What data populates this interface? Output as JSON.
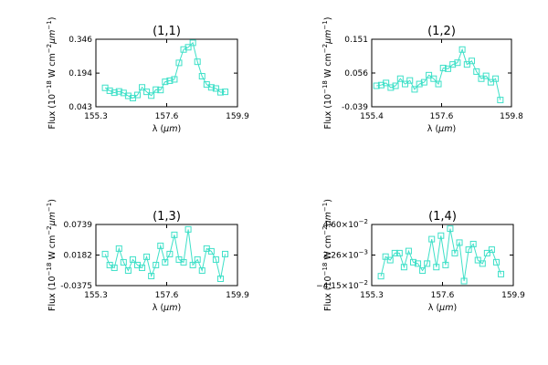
{
  "figure": {
    "ylabel_main": "Flux (10",
    "ylabel_exp1": "−18",
    "ylabel_mid": " W cm",
    "ylabel_exp2": "−2",
    "ylabel_end": "μm",
    "ylabel_exp3": "−1",
    "ylabel_close": ")",
    "xlabel_main": "λ (",
    "xlabel_unit": "μm",
    "xlabel_close": ")"
  },
  "chart_data": [
    {
      "type": "line",
      "title": "(1,1)",
      "xlabel": "λ (μm)",
      "ylabel": "Flux (10^-18 W cm^-2 μm^-1)",
      "xlim": [
        155.3,
        159.9
      ],
      "ylim": [
        0.043,
        0.346
      ],
      "xtick_values": [
        155.3,
        157.6,
        159.9
      ],
      "xtick_labels": [
        "155.3",
        "157.6",
        "159.9"
      ],
      "ytick_values": [
        0.043,
        0.194,
        0.346
      ],
      "ytick_labels": [
        "0.043",
        "0.194",
        "0.346"
      ],
      "marker": "square",
      "color": "#3ee0c8",
      "x": [
        155.6,
        155.75,
        155.9,
        156.05,
        156.2,
        156.35,
        156.5,
        156.65,
        156.8,
        156.95,
        157.1,
        157.25,
        157.4,
        157.55,
        157.7,
        157.85,
        158.0,
        158.15,
        158.3,
        158.45,
        158.6,
        158.75,
        158.9,
        159.05,
        159.2,
        159.35,
        159.5
      ],
      "y": [
        0.128,
        0.115,
        0.106,
        0.112,
        0.105,
        0.092,
        0.082,
        0.096,
        0.13,
        0.11,
        0.093,
        0.12,
        0.118,
        0.155,
        0.16,
        0.166,
        0.24,
        0.3,
        0.31,
        0.33,
        0.245,
        0.18,
        0.143,
        0.13,
        0.125,
        0.108,
        0.11
      ]
    },
    {
      "type": "line",
      "title": "(1,2)",
      "xlabel": "λ (μm)",
      "ylabel": "Flux (10^-18 W cm^-2 μm^-1)",
      "xlim": [
        155.4,
        159.8
      ],
      "ylim": [
        -0.039,
        0.151
      ],
      "xtick_values": [
        155.4,
        157.6,
        159.8
      ],
      "xtick_labels": [
        "155.4",
        "157.6",
        "159.8"
      ],
      "ytick_values": [
        -0.039,
        0.056,
        0.151
      ],
      "ytick_labels": [
        "-0.039",
        "0.056",
        "0.151"
      ],
      "marker": "square",
      "color": "#3ee0c8",
      "x": [
        155.55,
        155.7,
        155.85,
        156.0,
        156.15,
        156.3,
        156.45,
        156.6,
        156.75,
        156.9,
        157.05,
        157.2,
        157.35,
        157.5,
        157.65,
        157.8,
        157.95,
        158.1,
        158.25,
        158.4,
        158.55,
        158.7,
        158.85,
        159.0,
        159.15,
        159.3,
        159.45
      ],
      "y": [
        0.02,
        0.022,
        0.028,
        0.015,
        0.02,
        0.04,
        0.025,
        0.035,
        0.01,
        0.025,
        0.03,
        0.05,
        0.04,
        0.025,
        0.07,
        0.068,
        0.08,
        0.085,
        0.122,
        0.08,
        0.09,
        0.06,
        0.04,
        0.048,
        0.03,
        0.04,
        -0.02
      ]
    },
    {
      "type": "line",
      "title": "(1,3)",
      "xlabel": "λ (μm)",
      "ylabel": "Flux (10^-18 W cm^-2 μm^-1)",
      "xlim": [
        155.3,
        159.9
      ],
      "ylim": [
        -0.0375,
        0.0739
      ],
      "xtick_values": [
        155.3,
        157.6,
        159.9
      ],
      "xtick_labels": [
        "155.3",
        "157.6",
        "159.9"
      ],
      "ytick_values": [
        -0.0375,
        0.0182,
        0.0739
      ],
      "ytick_labels": [
        "-0.0375",
        "0.0182",
        "0.0739"
      ],
      "marker": "square",
      "color": "#3ee0c8",
      "x": [
        155.6,
        155.75,
        155.9,
        156.05,
        156.2,
        156.35,
        156.5,
        156.65,
        156.8,
        156.95,
        157.1,
        157.25,
        157.4,
        157.55,
        157.7,
        157.85,
        158.0,
        158.15,
        158.3,
        158.45,
        158.6,
        158.75,
        158.9,
        159.05,
        159.2,
        159.35,
        159.5
      ],
      "y": [
        0.02,
        0.0,
        -0.005,
        0.03,
        0.005,
        -0.01,
        0.01,
        0.0,
        -0.005,
        0.015,
        -0.02,
        0.0,
        0.035,
        0.005,
        0.02,
        0.055,
        0.01,
        0.005,
        0.065,
        0.0,
        0.01,
        -0.01,
        0.03,
        0.025,
        0.01,
        -0.025,
        0.02
      ]
    },
    {
      "type": "line",
      "title": "(1,4)",
      "xlabel": "λ (μm)",
      "ylabel": "Flux (10^-18 W cm^-2 μm^-1)",
      "xlim": [
        155.3,
        159.9
      ],
      "ylim": [
        -0.0415,
        0.046
      ],
      "xtick_values": [
        155.3,
        157.6,
        159.9
      ],
      "xtick_labels": [
        "155.3",
        "157.6",
        "159.9"
      ],
      "ytick_values": [
        -0.0415,
        0.00226,
        0.046
      ],
      "ytick_labels": [
        "−4.15×10",
        "2.26×10",
        "4.60×10"
      ],
      "ytick_exponents": [
        "−2",
        "−3",
        "−2"
      ],
      "marker": "square",
      "color": "#3ee0c8",
      "x": [
        155.6,
        155.75,
        155.9,
        156.05,
        156.2,
        156.35,
        156.5,
        156.65,
        156.8,
        156.95,
        157.1,
        157.25,
        157.4,
        157.55,
        157.7,
        157.85,
        158.0,
        158.15,
        158.3,
        158.45,
        158.6,
        158.75,
        158.9,
        159.05,
        159.2,
        159.35,
        159.5
      ],
      "y": [
        -0.028,
        0.0,
        -0.005,
        0.005,
        0.005,
        -0.015,
        0.008,
        -0.008,
        -0.01,
        -0.02,
        -0.01,
        0.025,
        -0.015,
        0.03,
        -0.012,
        0.04,
        0.005,
        0.02,
        -0.035,
        0.01,
        0.018,
        -0.005,
        -0.01,
        0.005,
        0.01,
        -0.008,
        -0.025
      ]
    }
  ]
}
